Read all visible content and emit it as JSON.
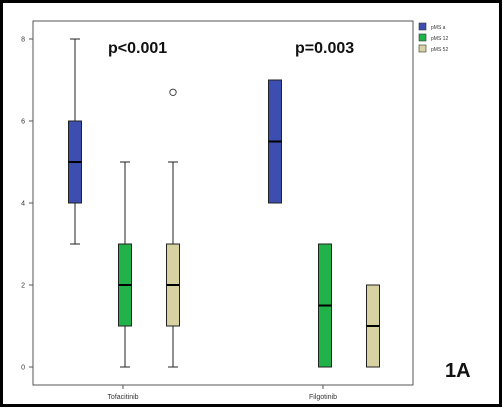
{
  "panel_label": "1A",
  "annotations": [
    "p<0.001",
    "p=0.003"
  ],
  "chart_data": {
    "type": "boxplot",
    "title": "",
    "xlabel": "",
    "ylabel": "",
    "ylim": [
      0,
      8
    ],
    "yticks": [
      0,
      2,
      4,
      6,
      8
    ],
    "grid": false,
    "legend_position": "top-right",
    "categories": [
      "Tofacitinib",
      "Filgotinib"
    ],
    "series": [
      {
        "name": "pMS a",
        "color": "#3c4fb0",
        "boxes": [
          {
            "category": "Tofacitinib",
            "min": 3,
            "q1": 4,
            "median": 5,
            "q3": 6,
            "max": 8,
            "outliers": []
          },
          {
            "category": "Filgotinib",
            "min": 4,
            "q1": 4,
            "median": 5.5,
            "q3": 7,
            "max": 7,
            "outliers": []
          }
        ]
      },
      {
        "name": "pMS 12",
        "color": "#22b24a",
        "boxes": [
          {
            "category": "Tofacitinib",
            "min": 0,
            "q1": 1,
            "median": 2,
            "q3": 3,
            "max": 5,
            "outliers": []
          },
          {
            "category": "Filgotinib",
            "min": 0,
            "q1": 0,
            "median": 1.5,
            "q3": 3,
            "max": 3,
            "outliers": []
          }
        ]
      },
      {
        "name": "pMS 52",
        "color": "#d8d2a2",
        "boxes": [
          {
            "category": "Tofacitinib",
            "min": 0,
            "q1": 1,
            "median": 2,
            "q3": 3,
            "max": 5,
            "outliers": [
              6.7
            ]
          },
          {
            "category": "Filgotinib",
            "min": 0,
            "q1": 0,
            "median": 1,
            "q3": 2,
            "max": 2,
            "outliers": []
          }
        ]
      }
    ]
  }
}
